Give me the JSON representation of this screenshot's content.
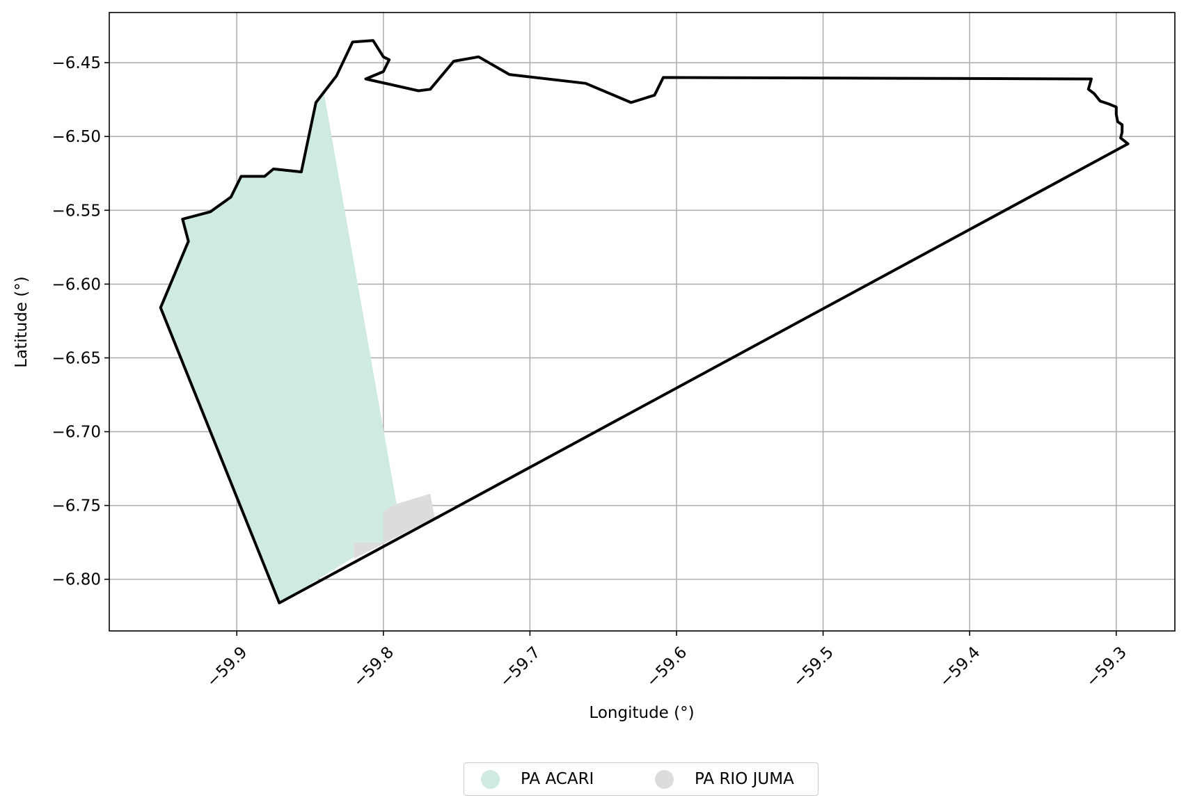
{
  "chart_data": {
    "type": "map",
    "xlabel": "Longitude (°)",
    "ylabel": "Latitude (°)",
    "xlim": [
      -59.987,
      -59.26
    ],
    "ylim": [
      -6.835,
      -6.416
    ],
    "xticks": [
      -59.9,
      -59.8,
      -59.7,
      -59.6,
      -59.5,
      -59.4,
      -59.3
    ],
    "yticks": [
      -6.45,
      -6.5,
      -6.55,
      -6.6,
      -6.65,
      -6.7,
      -6.75,
      -6.8
    ],
    "xtick_labels": [
      "−59.9",
      "−59.8",
      "−59.7",
      "−59.6",
      "−59.5",
      "−59.4",
      "−59.3"
    ],
    "ytick_labels": [
      "−6.45",
      "−6.50",
      "−6.55",
      "−6.60",
      "−6.65",
      "−6.70",
      "−6.75",
      "−6.80"
    ],
    "grid": true,
    "legend_position": "bottom-center",
    "layers": [
      {
        "name": "PA ACARI",
        "color": "#cfebdf",
        "polygon": [
          [
            -59.841,
            -6.468
          ],
          [
            -59.791,
            -6.749
          ],
          [
            -59.8,
            -6.754
          ],
          [
            -59.8,
            -6.775
          ],
          [
            -59.82,
            -6.775
          ],
          [
            -59.82,
            -6.785
          ],
          [
            -59.871,
            -6.816
          ],
          [
            -59.952,
            -6.616
          ],
          [
            -59.933,
            -6.571
          ],
          [
            -59.937,
            -6.556
          ],
          [
            -59.918,
            -6.551
          ],
          [
            -59.904,
            -6.541
          ],
          [
            -59.897,
            -6.527
          ],
          [
            -59.881,
            -6.527
          ],
          [
            -59.875,
            -6.522
          ],
          [
            -59.856,
            -6.524
          ],
          [
            -59.846,
            -6.477
          ]
        ]
      },
      {
        "name": "PA RIO JUMA",
        "color": "#dcdcdc",
        "polygon": [
          [
            -59.791,
            -6.749
          ],
          [
            -59.768,
            -6.742
          ],
          [
            -59.765,
            -6.758
          ],
          [
            -59.8,
            -6.776
          ],
          [
            -59.82,
            -6.786
          ],
          [
            -59.82,
            -6.775
          ],
          [
            -59.8,
            -6.775
          ],
          [
            -59.8,
            -6.754
          ]
        ]
      }
    ],
    "outline": {
      "color": "#000000",
      "polygon": [
        [
          -59.871,
          -6.816
        ],
        [
          -59.952,
          -6.616
        ],
        [
          -59.933,
          -6.571
        ],
        [
          -59.937,
          -6.556
        ],
        [
          -59.918,
          -6.551
        ],
        [
          -59.904,
          -6.541
        ],
        [
          -59.897,
          -6.527
        ],
        [
          -59.881,
          -6.527
        ],
        [
          -59.875,
          -6.522
        ],
        [
          -59.856,
          -6.524
        ],
        [
          -59.846,
          -6.477
        ],
        [
          -59.832,
          -6.459
        ],
        [
          -59.821,
          -6.436
        ],
        [
          -59.807,
          -6.435
        ],
        [
          -59.8,
          -6.446
        ],
        [
          -59.796,
          -6.448
        ],
        [
          -59.8,
          -6.456
        ],
        [
          -59.812,
          -6.461
        ],
        [
          -59.776,
          -6.469
        ],
        [
          -59.768,
          -6.468
        ],
        [
          -59.752,
          -6.449
        ],
        [
          -59.735,
          -6.446
        ],
        [
          -59.714,
          -6.458
        ],
        [
          -59.662,
          -6.464
        ],
        [
          -59.631,
          -6.477
        ],
        [
          -59.615,
          -6.472
        ],
        [
          -59.609,
          -6.46
        ],
        [
          -59.317,
          -6.461
        ],
        [
          -59.319,
          -6.468
        ],
        [
          -59.315,
          -6.471
        ],
        [
          -59.311,
          -6.476
        ],
        [
          -59.305,
          -6.478
        ],
        [
          -59.3,
          -6.48
        ],
        [
          -59.3,
          -6.485
        ],
        [
          -59.299,
          -6.49
        ],
        [
          -59.296,
          -6.492
        ],
        [
          -59.296,
          -6.497
        ],
        [
          -59.297,
          -6.501
        ],
        [
          -59.292,
          -6.505
        ]
      ]
    }
  }
}
